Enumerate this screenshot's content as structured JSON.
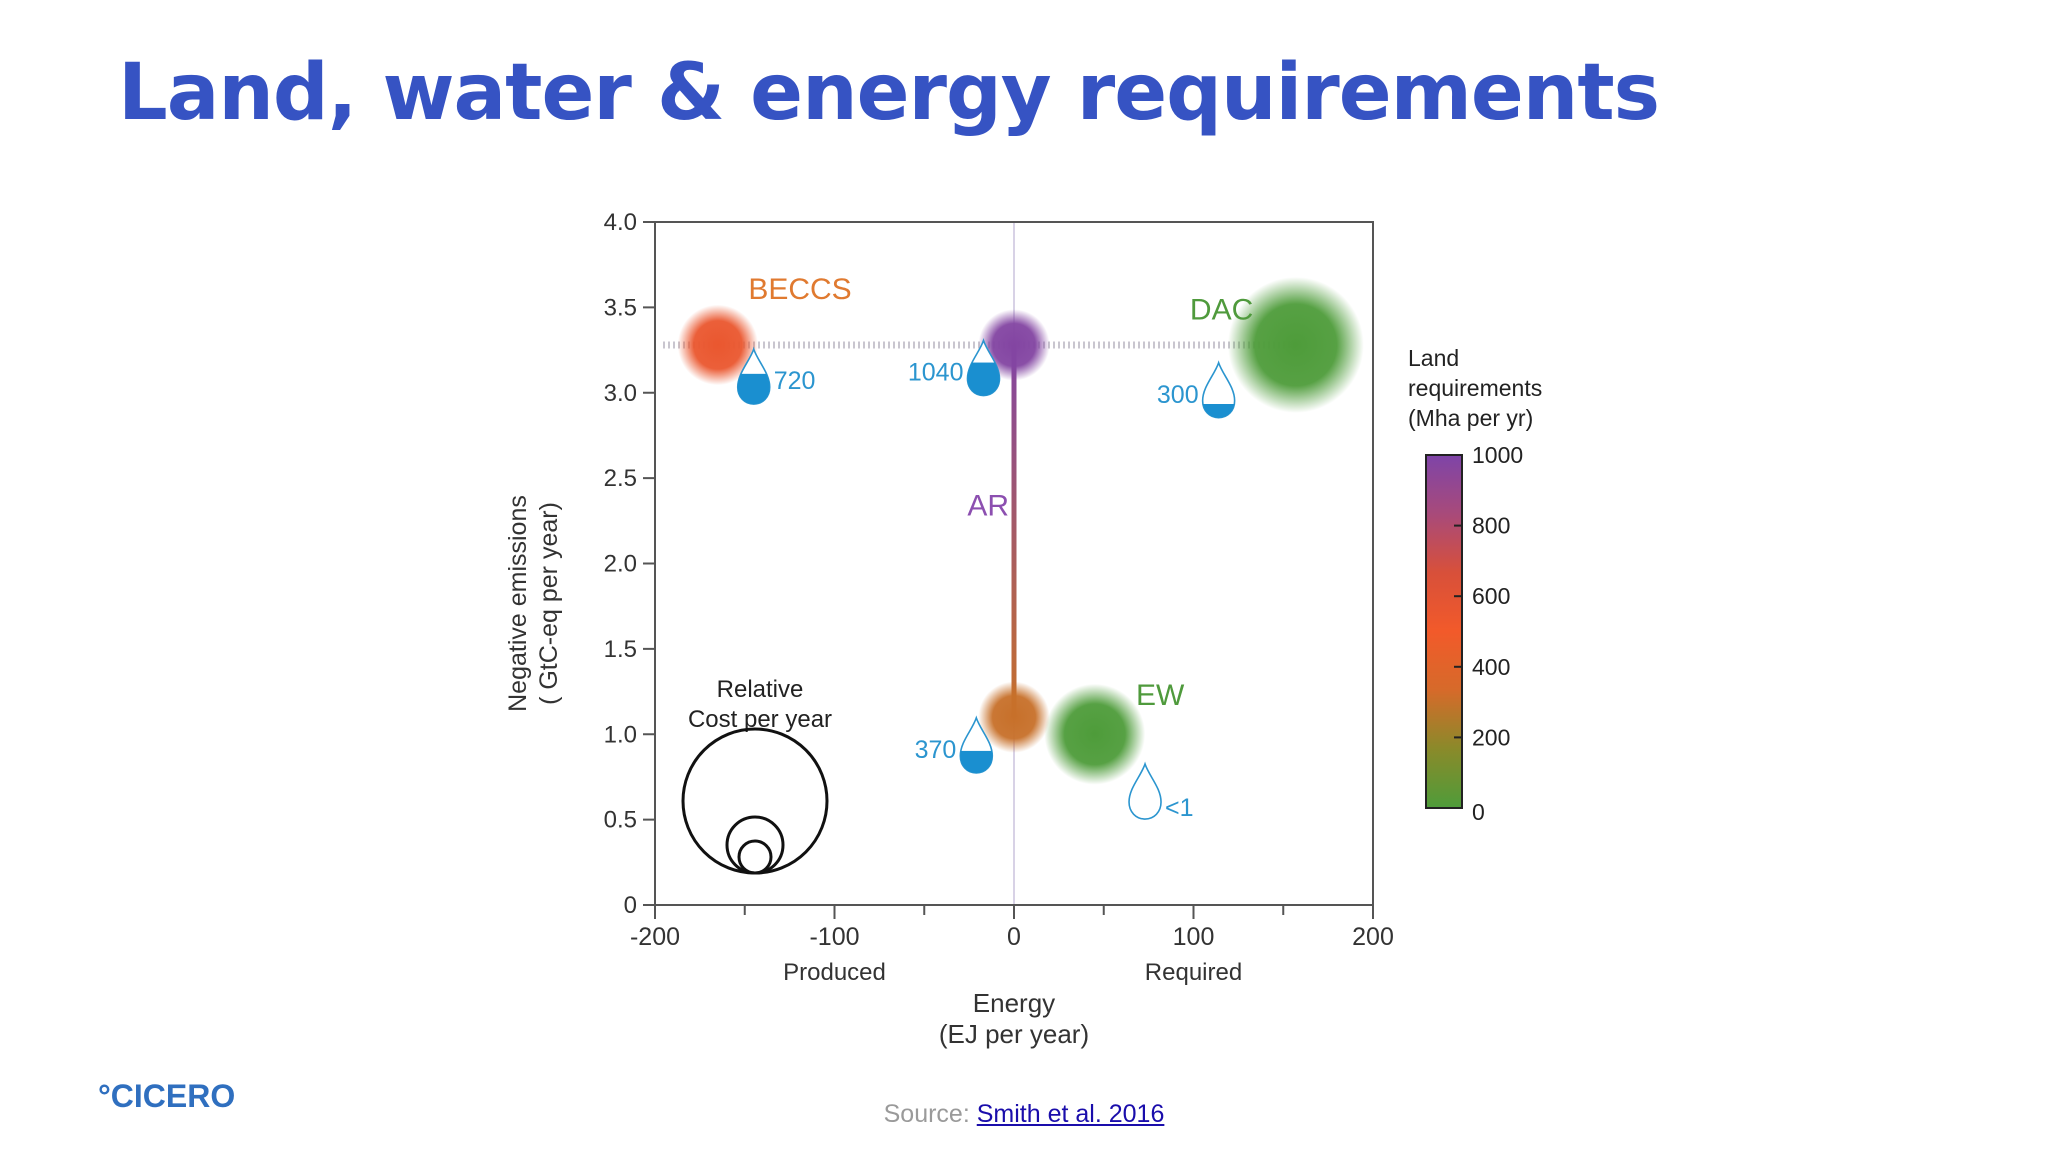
{
  "slide": {
    "title": "Land, water & energy requirements",
    "logo": "°CICERO",
    "source_prefix": "Source: ",
    "source_link": "Smith et al. 2016"
  },
  "chart_data": {
    "type": "scatter",
    "xlabel": [
      "Energy",
      "(EJ per year)"
    ],
    "ylabel": [
      "Negative emissions",
      "( GtC-eq per year)"
    ],
    "xlim": [
      -200,
      200
    ],
    "ylim": [
      0,
      4.0
    ],
    "x_ticks": [
      "-200",
      "-100",
      "0",
      "100",
      "200"
    ],
    "y_ticks": [
      "0",
      "0.5",
      "1.0",
      "1.5",
      "2.0",
      "2.5",
      "3.0",
      "3.5",
      "4.0"
    ],
    "x_annotations": [
      "Produced",
      "Required"
    ],
    "points": [
      {
        "label": "BECCS",
        "x": -165,
        "y": 3.28,
        "land_mha": 550,
        "cost_size": 0.35,
        "color": "#e4762e",
        "label_color": "#e07a30"
      },
      {
        "label": "AR",
        "x": 0,
        "y": 3.28,
        "land_mha": 980,
        "cost_size": 0.25,
        "color": "#8c4fb0",
        "label_color": "#8c4fb0"
      },
      {
        "label": "AR",
        "x": 0,
        "y": 1.1,
        "land_mha": 300,
        "cost_size": 0.25,
        "color": "#e9822e",
        "label_color": "#8c4fb0"
      },
      {
        "label": "EW",
        "x": 45,
        "y": 1.0,
        "land_mha": 0,
        "cost_size": 0.55,
        "color": "#6aa848",
        "label_color": "#4f9a3c"
      },
      {
        "label": "DAC",
        "x": 157,
        "y": 3.28,
        "land_mha": 0,
        "cost_size": 1.0,
        "color": "#3f9a3a",
        "label_color": "#4f9a3c"
      }
    ],
    "water": [
      {
        "label": "720",
        "x": -145,
        "y": 3.08,
        "fill": 0.55
      },
      {
        "label": "1040",
        "x": -17,
        "y": 3.13,
        "fill": 0.6
      },
      {
        "label": "300",
        "x": 114,
        "y": 3.0,
        "fill": 0.25
      },
      {
        "label": "370",
        "x": -21,
        "y": 0.92,
        "fill": 0.4
      },
      {
        "label": "<1",
        "x": 73,
        "y": 0.65,
        "fill": 0.0
      }
    ],
    "cost_legend": {
      "title": [
        "Relative",
        "Cost per year"
      ]
    },
    "colorbar": {
      "title": [
        "Land",
        "requirements",
        "(Mha per yr)"
      ],
      "min": 0,
      "max": 1000,
      "ticks": [
        "1000",
        "800",
        "600",
        "400",
        "200",
        "0"
      ],
      "colors": [
        "#4e9c3a",
        "#8a8a2a",
        "#d66a2a",
        "#f25a2a",
        "#d8503a",
        "#a84a7a",
        "#7e44a8"
      ]
    }
  }
}
